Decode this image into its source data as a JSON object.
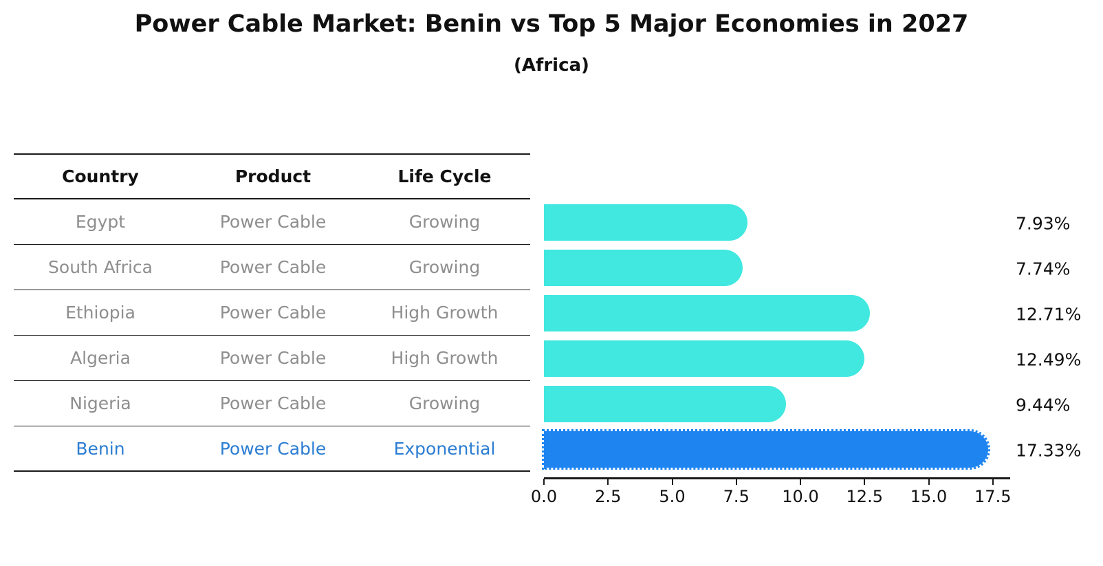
{
  "table": {
    "headers": [
      "Country",
      "Product",
      "Life Cycle"
    ],
    "rows": [
      {
        "country": "Egypt",
        "product": "Power Cable",
        "life_cycle": "Growing"
      },
      {
        "country": "South Africa",
        "product": "Power Cable",
        "life_cycle": "Growing"
      },
      {
        "country": "Ethiopia",
        "product": "Power Cable",
        "life_cycle": "High Growth"
      },
      {
        "country": "Algeria",
        "product": "Power Cable",
        "life_cycle": "High Growth"
      },
      {
        "country": "Nigeria",
        "product": "Power Cable",
        "life_cycle": "Growing"
      },
      {
        "country": "Benin",
        "product": "Power Cable",
        "life_cycle": "Exponential"
      }
    ]
  },
  "chart_data": {
    "type": "bar",
    "orientation": "horizontal",
    "title": "Power Cable Market: Benin vs Top 5 Major Economies in 2027",
    "subtitle": "(Africa)",
    "categories": [
      "Egypt",
      "South Africa",
      "Ethiopia",
      "Algeria",
      "Nigeria",
      "Benin"
    ],
    "values": [
      7.93,
      7.74,
      12.71,
      12.49,
      9.44,
      17.33
    ],
    "value_labels": [
      "7.93%",
      "7.74%",
      "12.71%",
      "12.49%",
      "9.44%",
      "17.33%"
    ],
    "x_ticks": [
      "0.0",
      "2.5",
      "5.0",
      "7.5",
      "10.0",
      "12.5",
      "15.0",
      "17.5"
    ],
    "x_tick_values": [
      0,
      2.5,
      5,
      7.5,
      10,
      12.5,
      15,
      17.5
    ],
    "xlim": [
      0,
      18.2
    ],
    "grid": false,
    "legend": false,
    "highlight_index": 5,
    "colors": {
      "bar": "#40E8E0",
      "highlight_bar": "#1E84F0",
      "highlight_text": "#2B7DD2",
      "row_text": "#8E8E8E",
      "axis_text": "#111111"
    }
  }
}
